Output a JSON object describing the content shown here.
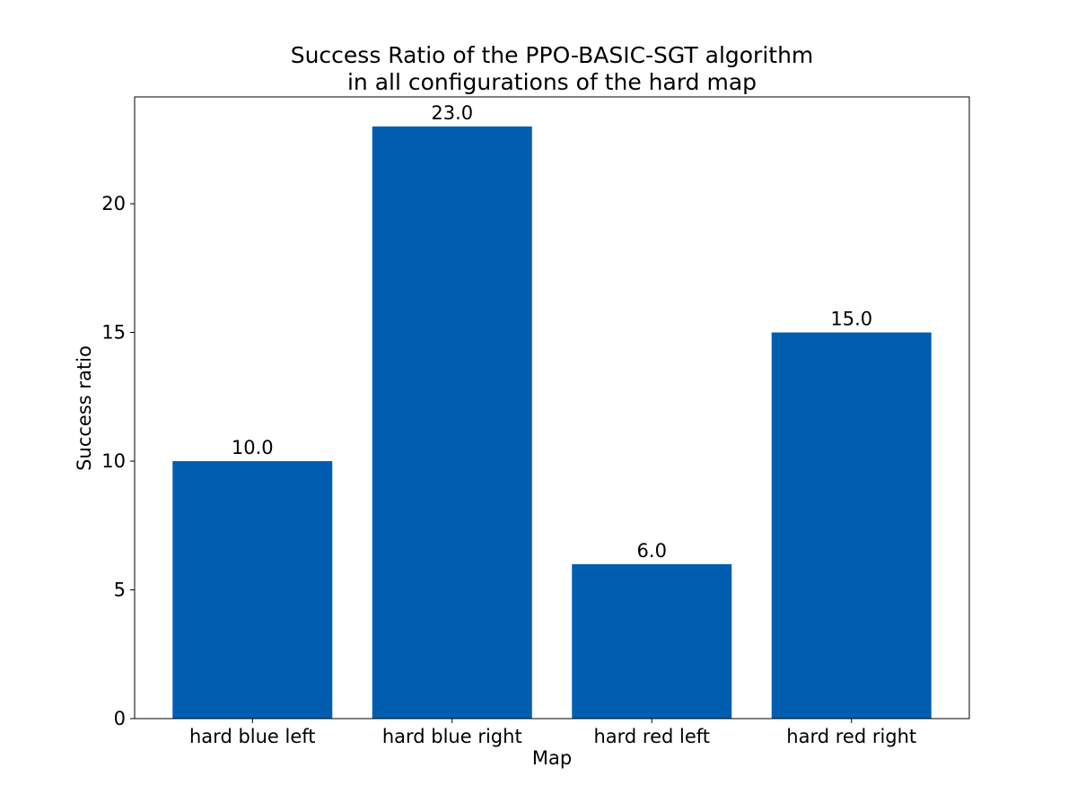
{
  "chart_data": {
    "type": "bar",
    "title": [
      "Success Ratio of the PPO-BASIC-SGT algorithm",
      "in all configurations of the hard map"
    ],
    "xlabel": "Map",
    "ylabel": "Success ratio",
    "categories": [
      "hard blue left",
      "hard blue right",
      "hard red left",
      "hard red right"
    ],
    "values": [
      10.0,
      23.0,
      6.0,
      15.0
    ],
    "data_labels": [
      "10.0",
      "23.0",
      "6.0",
      "15.0"
    ],
    "ylim": [
      0,
      24.15
    ],
    "yticks": [
      0,
      5,
      10,
      15,
      20
    ],
    "grid": false,
    "legend": null,
    "bar_color": "#005eb0"
  }
}
